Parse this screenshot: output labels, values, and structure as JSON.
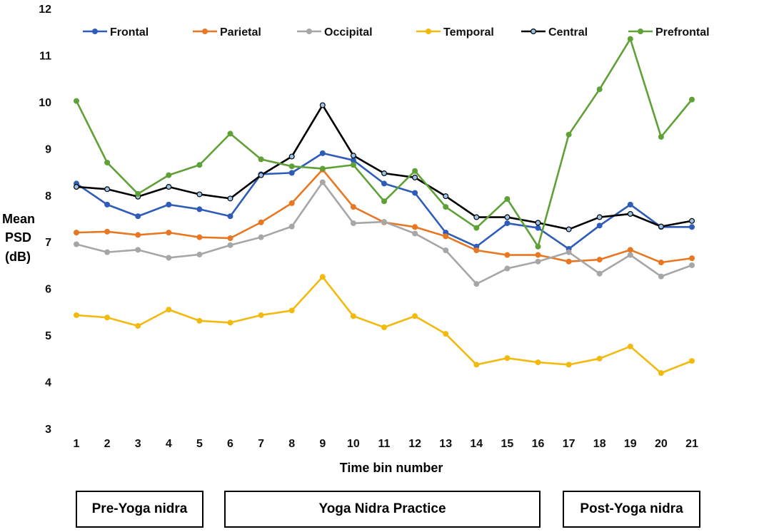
{
  "chart_data": {
    "type": "line",
    "title": "",
    "xlabel": "Time bin number",
    "ylabel": [
      "Mean",
      "PSD",
      "(dB)"
    ],
    "ylim": [
      3,
      12
    ],
    "yticks": [
      3,
      4,
      5,
      6,
      7,
      8,
      9,
      10,
      11,
      12
    ],
    "x": [
      1,
      2,
      3,
      4,
      5,
      6,
      7,
      8,
      9,
      10,
      11,
      12,
      13,
      14,
      15,
      16,
      17,
      18,
      19,
      20,
      21
    ],
    "grid": false,
    "legend_position": "top",
    "series": [
      {
        "name": "Frontal",
        "color": "#2e5cb8",
        "marker_fill": "#2e5cb8",
        "values": [
          8.25,
          7.8,
          7.55,
          7.8,
          7.7,
          7.55,
          8.45,
          8.48,
          8.9,
          8.75,
          8.25,
          8.05,
          7.2,
          6.9,
          7.4,
          7.3,
          6.85,
          7.35,
          7.8,
          7.32,
          7.32
        ]
      },
      {
        "name": "Parietal",
        "color": "#e87722",
        "marker_fill": "#e87722",
        "values": [
          7.2,
          7.22,
          7.15,
          7.2,
          7.1,
          7.08,
          7.42,
          7.83,
          8.55,
          7.75,
          7.42,
          7.32,
          7.12,
          6.82,
          6.72,
          6.72,
          6.58,
          6.62,
          6.83,
          6.56,
          6.65
        ]
      },
      {
        "name": "Occipital",
        "color": "#a6a6a6",
        "marker_fill": "#a6a6a6",
        "values": [
          6.95,
          6.78,
          6.83,
          6.66,
          6.73,
          6.93,
          7.1,
          7.33,
          8.28,
          7.4,
          7.43,
          7.18,
          6.82,
          6.1,
          6.43,
          6.58,
          6.78,
          6.32,
          6.72,
          6.26,
          6.5
        ]
      },
      {
        "name": "Temporal",
        "color": "#f2b90f",
        "marker_fill": "#f2b90f",
        "values": [
          5.43,
          5.38,
          5.2,
          5.55,
          5.31,
          5.27,
          5.43,
          5.53,
          6.25,
          5.41,
          5.17,
          5.41,
          5.03,
          4.37,
          4.51,
          4.42,
          4.37,
          4.5,
          4.76,
          4.19,
          4.45
        ]
      },
      {
        "name": "Central",
        "color": "#000000",
        "marker_fill": "#9dc3e6",
        "values": [
          8.18,
          8.13,
          7.97,
          8.18,
          8.02,
          7.93,
          8.43,
          8.83,
          9.93,
          8.85,
          8.47,
          8.38,
          7.98,
          7.53,
          7.53,
          7.41,
          7.27,
          7.53,
          7.6,
          7.33,
          7.45
        ]
      },
      {
        "name": "Prefrontal",
        "color": "#5fa137",
        "marker_fill": "#5fa137",
        "values": [
          10.02,
          8.7,
          8.03,
          8.43,
          8.65,
          9.32,
          8.77,
          8.62,
          8.57,
          8.65,
          7.87,
          8.52,
          7.75,
          7.3,
          7.92,
          6.9,
          9.3,
          10.27,
          11.35,
          9.25,
          10.05
        ]
      }
    ],
    "phases": [
      {
        "label": "Pre-Yoga nidra",
        "bins": [
          1,
          5
        ]
      },
      {
        "label": "Yoga Nidra Practice",
        "bins": [
          6,
          16
        ]
      },
      {
        "label": "Post-Yoga nidra",
        "bins": [
          17,
          21
        ]
      }
    ]
  }
}
